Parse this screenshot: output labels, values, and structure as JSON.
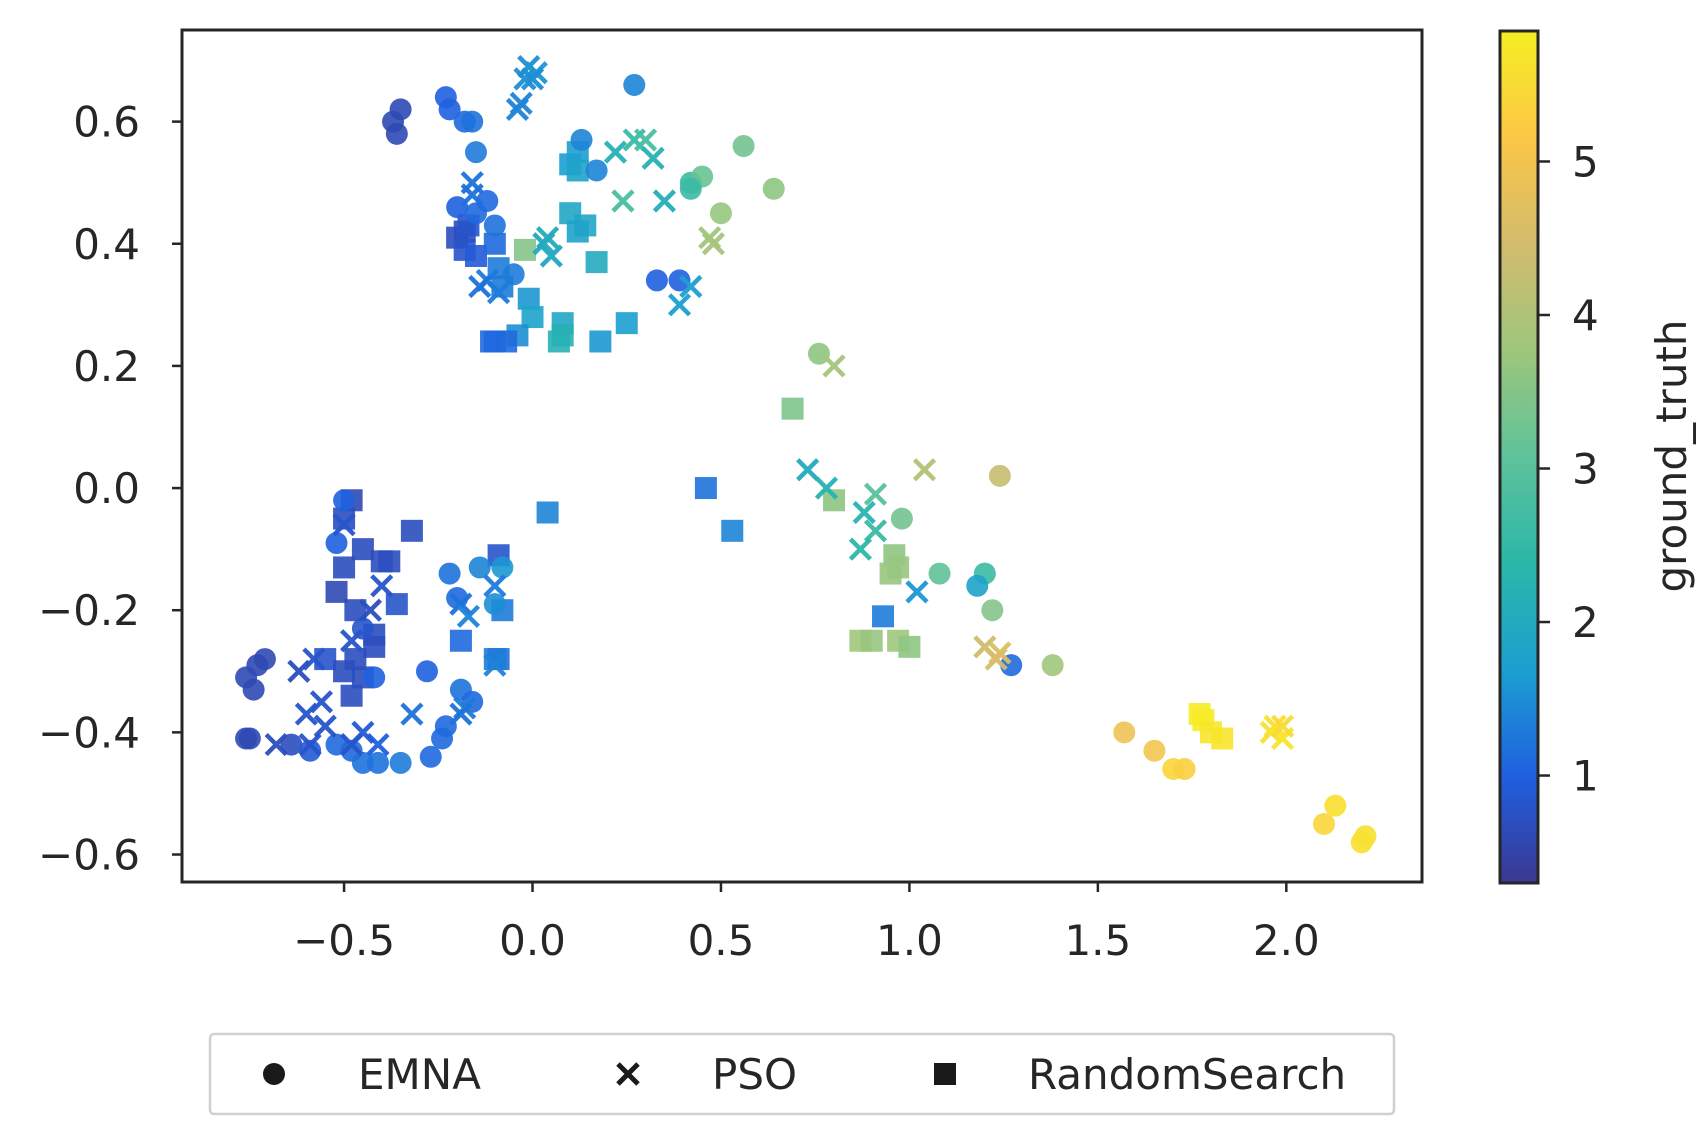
{
  "chart_data": {
    "type": "scatter",
    "title": "",
    "xlabel": "",
    "ylabel": "",
    "xlim": [
      -0.93,
      2.36
    ],
    "ylim": [
      -0.645,
      0.75
    ],
    "xticks": [
      -0.5,
      0.0,
      0.5,
      1.0,
      1.5,
      2.0
    ],
    "xtick_labels": [
      "−0.5",
      "0.0",
      "0.5",
      "1.0",
      "1.5",
      "2.0"
    ],
    "yticks": [
      -0.6,
      -0.4,
      -0.2,
      0.0,
      0.2,
      0.4,
      0.6
    ],
    "ytick_labels": [
      "−0.6",
      "−0.4",
      "−0.2",
      "0.0",
      "0.2",
      "0.4",
      "0.6"
    ],
    "grid": false,
    "legend_position": "bottom-center, outside",
    "colorbar": {
      "label": "ground_truth",
      "range": [
        0.3,
        5.85
      ],
      "ticks": [
        1,
        2,
        3,
        4,
        5
      ],
      "tick_labels": [
        "1",
        "2",
        "3",
        "4",
        "5"
      ],
      "colormap": [
        "#3b3891",
        "#1f5fe0",
        "#1c9fd0",
        "#2bb7a8",
        "#5ec29a",
        "#9ec67c",
        "#d3bc6c",
        "#fbc746",
        "#f6ee23"
      ]
    },
    "series": [
      {
        "name": "EMNA",
        "marker": "circle",
        "points": [
          [
            -0.37,
            0.6,
            0.6
          ],
          [
            -0.35,
            0.62,
            0.6
          ],
          [
            -0.36,
            0.58,
            0.6
          ],
          [
            -0.23,
            0.64,
            1.0
          ],
          [
            -0.22,
            0.62,
            1.0
          ],
          [
            -0.18,
            0.6,
            1.1
          ],
          [
            -0.16,
            0.6,
            1.2
          ],
          [
            -0.15,
            0.55,
            1.3
          ],
          [
            0.27,
            0.66,
            1.4
          ],
          [
            0.13,
            0.57,
            1.4
          ],
          [
            0.17,
            0.52,
            1.4
          ],
          [
            0.42,
            0.5,
            2.6
          ],
          [
            0.45,
            0.51,
            3.2
          ],
          [
            0.56,
            0.56,
            3.3
          ],
          [
            0.64,
            0.49,
            3.6
          ],
          [
            0.5,
            0.45,
            3.7
          ],
          [
            0.42,
            0.49,
            2.6
          ],
          [
            -0.2,
            0.46,
            1.0
          ],
          [
            -0.15,
            0.45,
            1.1
          ],
          [
            -0.12,
            0.47,
            1.1
          ],
          [
            -0.1,
            0.43,
            1.2
          ],
          [
            -0.05,
            0.35,
            1.3
          ],
          [
            0.33,
            0.34,
            1.0
          ],
          [
            0.39,
            0.34,
            1.0
          ],
          [
            0.76,
            0.22,
            3.6
          ],
          [
            1.24,
            0.02,
            4.3
          ],
          [
            0.98,
            -0.05,
            3.3
          ],
          [
            1.08,
            -0.14,
            3.1
          ],
          [
            1.2,
            -0.14,
            2.6
          ],
          [
            1.18,
            -0.16,
            1.8
          ],
          [
            1.22,
            -0.2,
            3.5
          ],
          [
            1.27,
            -0.29,
            1.1
          ],
          [
            1.38,
            -0.29,
            3.8
          ],
          [
            -0.5,
            -0.02,
            1.0
          ],
          [
            -0.52,
            -0.09,
            1.0
          ],
          [
            -0.22,
            -0.14,
            1.2
          ],
          [
            -0.2,
            -0.18,
            1.1
          ],
          [
            -0.14,
            -0.13,
            1.4
          ],
          [
            -0.08,
            -0.13,
            1.6
          ],
          [
            -0.1,
            -0.19,
            1.5
          ],
          [
            -0.19,
            -0.33,
            1.2
          ],
          [
            -0.16,
            -0.35,
            1.1
          ],
          [
            -0.76,
            -0.31,
            0.6
          ],
          [
            -0.73,
            -0.29,
            0.6
          ],
          [
            -0.71,
            -0.28,
            0.6
          ],
          [
            -0.74,
            -0.33,
            0.6
          ],
          [
            -0.75,
            -0.41,
            0.6
          ],
          [
            -0.76,
            -0.41,
            0.6
          ],
          [
            -0.64,
            -0.42,
            0.7
          ],
          [
            -0.59,
            -0.43,
            0.9
          ],
          [
            -0.52,
            -0.42,
            1.1
          ],
          [
            -0.48,
            -0.43,
            1.1
          ],
          [
            -0.45,
            -0.45,
            1.2
          ],
          [
            -0.41,
            -0.45,
            1.2
          ],
          [
            -0.35,
            -0.45,
            1.3
          ],
          [
            -0.27,
            -0.44,
            1.1
          ],
          [
            -0.24,
            -0.41,
            1.1
          ],
          [
            -0.23,
            -0.39,
            1.1
          ],
          [
            1.57,
            -0.4,
            4.9
          ],
          [
            1.65,
            -0.43,
            5.0
          ],
          [
            1.7,
            -0.46,
            5.4
          ],
          [
            1.73,
            -0.46,
            5.3
          ],
          [
            2.1,
            -0.55,
            5.4
          ],
          [
            2.13,
            -0.52,
            5.6
          ],
          [
            2.2,
            -0.58,
            5.6
          ],
          [
            2.21,
            -0.57,
            5.6
          ],
          [
            -0.28,
            -0.3,
            1.0
          ],
          [
            -0.45,
            -0.23,
            0.8
          ],
          [
            -0.42,
            -0.31,
            1.0
          ]
        ]
      },
      {
        "name": "PSO",
        "marker": "x",
        "points": [
          [
            -0.04,
            0.62,
            1.4
          ],
          [
            -0.03,
            0.63,
            1.4
          ],
          [
            -0.02,
            0.67,
            1.5
          ],
          [
            -0.01,
            0.69,
            1.5
          ],
          [
            0.01,
            0.68,
            1.6
          ],
          [
            0.0,
            0.67,
            1.5
          ],
          [
            0.22,
            0.55,
            2.2
          ],
          [
            0.27,
            0.57,
            2.6
          ],
          [
            0.3,
            0.57,
            2.8
          ],
          [
            0.32,
            0.54,
            2.2
          ],
          [
            0.24,
            0.47,
            2.8
          ],
          [
            0.35,
            0.47,
            2.1
          ],
          [
            0.47,
            0.41,
            3.8
          ],
          [
            0.48,
            0.4,
            3.9
          ],
          [
            -0.16,
            0.5,
            1.2
          ],
          [
            -0.16,
            0.48,
            1.2
          ],
          [
            0.04,
            0.41,
            2.0
          ],
          [
            0.05,
            0.38,
            1.9
          ],
          [
            0.03,
            0.4,
            2.0
          ],
          [
            -0.12,
            0.34,
            1.3
          ],
          [
            -0.14,
            0.33,
            1.2
          ],
          [
            -0.09,
            0.32,
            1.3
          ],
          [
            0.39,
            0.3,
            1.7
          ],
          [
            0.42,
            0.33,
            1.7
          ],
          [
            0.8,
            0.2,
            3.9
          ],
          [
            1.04,
            0.03,
            4.0
          ],
          [
            0.73,
            0.03,
            2.0
          ],
          [
            0.78,
            0.0,
            2.2
          ],
          [
            0.88,
            -0.04,
            2.3
          ],
          [
            0.91,
            -0.01,
            3.0
          ],
          [
            0.91,
            -0.07,
            2.6
          ],
          [
            0.87,
            -0.1,
            2.4
          ],
          [
            1.02,
            -0.17,
            1.6
          ],
          [
            1.2,
            -0.26,
            4.4
          ],
          [
            1.23,
            -0.28,
            4.5
          ],
          [
            1.24,
            -0.27,
            4.6
          ],
          [
            -0.19,
            -0.19,
            1.2
          ],
          [
            -0.17,
            -0.21,
            1.4
          ],
          [
            -0.1,
            -0.16,
            1.3
          ],
          [
            -0.1,
            -0.29,
            1.4
          ],
          [
            -0.18,
            -0.36,
            1.3
          ],
          [
            -0.19,
            -0.37,
            1.2
          ],
          [
            -0.32,
            -0.37,
            1.2
          ],
          [
            -0.41,
            -0.42,
            1.0
          ],
          [
            -0.45,
            -0.4,
            0.9
          ],
          [
            -0.48,
            -0.42,
            0.8
          ],
          [
            -0.68,
            -0.42,
            0.7
          ],
          [
            -0.59,
            -0.42,
            0.8
          ],
          [
            -0.6,
            -0.37,
            0.8
          ],
          [
            -0.62,
            -0.3,
            0.7
          ],
          [
            -0.58,
            -0.28,
            0.8
          ],
          [
            -0.56,
            -0.35,
            0.8
          ],
          [
            -0.55,
            -0.39,
            0.8
          ],
          [
            -0.4,
            -0.16,
            0.8
          ],
          [
            -0.43,
            -0.2,
            0.7
          ],
          [
            1.96,
            -0.4,
            5.6
          ],
          [
            1.99,
            -0.41,
            5.7
          ],
          [
            1.97,
            -0.39,
            5.6
          ],
          [
            1.99,
            -0.39,
            5.5
          ],
          [
            -0.5,
            -0.06,
            0.8
          ],
          [
            -0.48,
            -0.25,
            0.8
          ]
        ]
      },
      {
        "name": "RandomSearch",
        "marker": "square",
        "points": [
          [
            0.1,
            0.53,
            1.7
          ],
          [
            0.12,
            0.55,
            1.7
          ],
          [
            0.12,
            0.52,
            1.8
          ],
          [
            0.1,
            0.45,
            1.9
          ],
          [
            0.14,
            0.43,
            1.9
          ],
          [
            0.12,
            0.42,
            1.8
          ],
          [
            0.17,
            0.37,
            2.0
          ],
          [
            -0.02,
            0.39,
            3.5
          ],
          [
            -0.2,
            0.41,
            0.7
          ],
          [
            -0.18,
            0.42,
            0.7
          ],
          [
            -0.18,
            0.39,
            0.8
          ],
          [
            -0.15,
            0.38,
            0.9
          ],
          [
            -0.17,
            0.43,
            0.8
          ],
          [
            -0.1,
            0.4,
            1.1
          ],
          [
            -0.09,
            0.36,
            1.3
          ],
          [
            -0.08,
            0.33,
            1.3
          ],
          [
            -0.01,
            0.31,
            1.6
          ],
          [
            0.0,
            0.28,
            1.8
          ],
          [
            -0.04,
            0.25,
            1.5
          ],
          [
            -0.1,
            0.24,
            1.1
          ],
          [
            -0.11,
            0.24,
            1.1
          ],
          [
            -0.07,
            0.24,
            1.1
          ],
          [
            0.08,
            0.27,
            1.9
          ],
          [
            0.08,
            0.25,
            2.2
          ],
          [
            0.07,
            0.24,
            2.2
          ],
          [
            0.18,
            0.24,
            1.6
          ],
          [
            0.25,
            0.27,
            1.7
          ],
          [
            0.69,
            0.13,
            3.4
          ],
          [
            0.46,
            0.0,
            1.2
          ],
          [
            0.53,
            -0.07,
            1.4
          ],
          [
            0.04,
            -0.04,
            1.4
          ],
          [
            0.8,
            -0.02,
            3.6
          ],
          [
            0.96,
            -0.11,
            3.6
          ],
          [
            0.97,
            -0.13,
            3.7
          ],
          [
            0.95,
            -0.14,
            3.7
          ],
          [
            0.93,
            -0.21,
            1.3
          ],
          [
            0.87,
            -0.25,
            3.8
          ],
          [
            0.9,
            -0.25,
            3.7
          ],
          [
            0.97,
            -0.25,
            3.8
          ],
          [
            1.0,
            -0.26,
            3.6
          ],
          [
            -0.08,
            -0.2,
            1.3
          ],
          [
            -0.09,
            -0.28,
            1.2
          ],
          [
            -0.1,
            -0.28,
            1.3
          ],
          [
            -0.19,
            -0.25,
            1.1
          ],
          [
            -0.09,
            -0.11,
            0.8
          ],
          [
            -0.48,
            -0.02,
            0.6
          ],
          [
            -0.5,
            -0.05,
            0.7
          ],
          [
            -0.5,
            -0.13,
            0.7
          ],
          [
            -0.52,
            -0.17,
            0.6
          ],
          [
            -0.47,
            -0.2,
            0.7
          ],
          [
            -0.45,
            -0.1,
            0.7
          ],
          [
            -0.4,
            -0.12,
            0.7
          ],
          [
            -0.38,
            -0.12,
            0.7
          ],
          [
            -0.32,
            -0.07,
            0.7
          ],
          [
            -0.36,
            -0.19,
            0.8
          ],
          [
            -0.42,
            -0.24,
            0.7
          ],
          [
            -0.42,
            -0.26,
            0.7
          ],
          [
            -0.55,
            -0.28,
            0.8
          ],
          [
            -0.5,
            -0.3,
            0.7
          ],
          [
            -0.48,
            -0.34,
            0.7
          ],
          [
            -0.45,
            -0.31,
            0.7
          ],
          [
            -0.47,
            -0.28,
            0.7
          ],
          [
            1.77,
            -0.37,
            5.8
          ],
          [
            1.78,
            -0.38,
            5.8
          ],
          [
            1.8,
            -0.4,
            5.7
          ],
          [
            1.83,
            -0.41,
            5.7
          ]
        ]
      }
    ]
  }
}
